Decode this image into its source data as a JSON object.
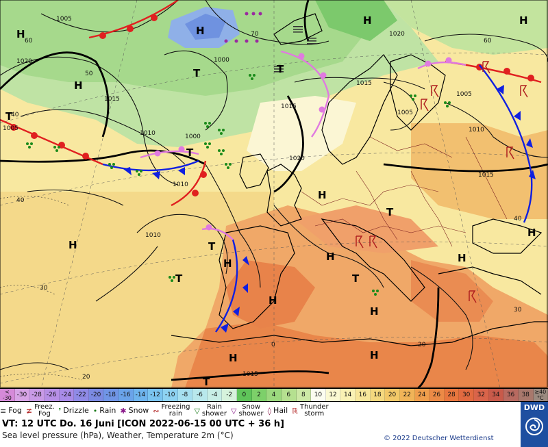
{
  "isobar_labels": [
    "1005",
    "1015",
    "1000",
    "1010",
    "1020",
    "1015",
    "1015",
    "1020",
    "1005",
    "1005",
    "1010",
    "1015",
    "1020",
    "1000",
    "1010",
    "1005",
    "1015",
    "1010"
  ],
  "temp_isoline_labels": [
    "60",
    "50",
    "70",
    "40",
    "30",
    "20",
    "0",
    "40",
    "60",
    "40",
    "30",
    "20"
  ],
  "pressure_centers": {
    "high": "H",
    "low": "T"
  },
  "scale": {
    "cells": [
      "<\n-30",
      "-30",
      "-28",
      "-26",
      "-24",
      "-22",
      "-20",
      "-18",
      "-16",
      "-14",
      "-12",
      "-10",
      "-8",
      "-6",
      "-4",
      "-2",
      "0",
      "2",
      "4",
      "6",
      "8",
      "10",
      "12",
      "14",
      "16",
      "18",
      "20",
      "22",
      "24",
      "26",
      "28",
      "30",
      "32",
      "34",
      "36",
      "38",
      "≥40\n°C"
    ],
    "colors": [
      "#d58ad9",
      "#d7a4e6",
      "#c89ae6",
      "#b78fe6",
      "#a88be8",
      "#8f8ae6",
      "#7b8ae2",
      "#7095e6",
      "#6aa3ea",
      "#6eb4ee",
      "#7ac4f0",
      "#8ed2f2",
      "#a6dff0",
      "#b8e8ec",
      "#c8eee6",
      "#d6f2dc",
      "#5fc45a",
      "#7dd06a",
      "#9bd87e",
      "#b5e090",
      "#cce8a6",
      "#fcfdf0",
      "#fbf9d2",
      "#f9f1b4",
      "#f7e69a",
      "#f4d87e",
      "#f2c868",
      "#f0b458",
      "#ef9e4c",
      "#ec8a46",
      "#e8763e",
      "#e26a40",
      "#d9644a",
      "#c85a4a",
      "#b86a60",
      "#a8786c",
      "#9a8a80"
    ]
  },
  "legend": [
    {
      "icon": "fog-icon",
      "symbol": "≡",
      "label": "Fog",
      "color": "#333333"
    },
    {
      "icon": "freezing-fog-icon",
      "symbol": "≢",
      "label": "Freez.\nFog",
      "color": "#b02020"
    },
    {
      "icon": "drizzle-icon",
      "symbol": "❜",
      "label": "Drizzle",
      "color": "#1a7a1a"
    },
    {
      "icon": "rain-icon",
      "symbol": "•",
      "label": "Rain",
      "color": "#1a7a1a"
    },
    {
      "icon": "snow-icon",
      "symbol": "✱",
      "label": "Snow",
      "color": "#8a1a8a"
    },
    {
      "icon": "freezing-rain-icon",
      "symbol": "∾",
      "label": "Freezing\nrain",
      "color": "#b02020"
    },
    {
      "icon": "rain-shower-icon",
      "symbol": "▽",
      "label": "Rain\nshower",
      "color": "#1a7a1a"
    },
    {
      "icon": "snow-shower-icon",
      "symbol": "▽",
      "label": "Snow\nshower",
      "color": "#8a1a8a"
    },
    {
      "icon": "hail-icon",
      "symbol": "◊",
      "label": "Hail",
      "color": "#8a1a4a"
    },
    {
      "icon": "thunderstorm-icon",
      "symbol": "ℝ",
      "label": "Thunder\nstorm",
      "color": "#b02020"
    }
  ],
  "info": {
    "valid_time": "VT: 12 UTC Do.  16 Juni [ICON 2022-06-15  00 UTC + 36 h]",
    "description": "Sea level pressure (hPa), Weather, Temperature 2m (°C)",
    "copyright": "© 2022 Deutscher Wetterdienst",
    "logo": "DWD"
  }
}
